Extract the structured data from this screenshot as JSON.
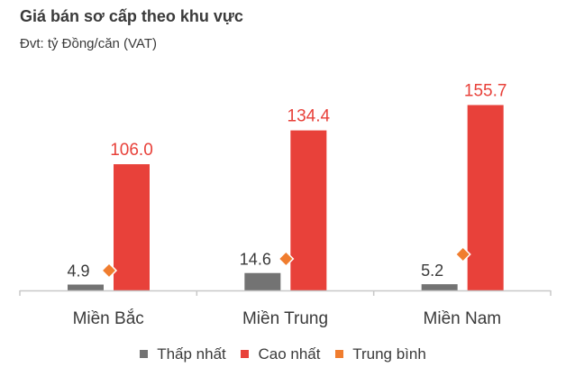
{
  "title": "Giá bán sơ cấp theo khu vực",
  "subtitle": "Đvt: tỷ Đồng/căn (VAT)",
  "colors": {
    "low": "#737373",
    "high": "#e8413a",
    "avg": "#f07d2f",
    "axis": "#c8c8c8",
    "text": "#3a3a3a"
  },
  "chart_data": {
    "type": "bar",
    "title": "Giá bán sơ cấp theo khu vực",
    "subtitle": "Đvt: tỷ Đồng/căn (VAT)",
    "xlabel": "",
    "ylabel": "",
    "categories": [
      "Miền Bắc",
      "Miền Trung",
      "Miền Nam"
    ],
    "series": [
      {
        "name": "Thấp nhất",
        "kind": "bar",
        "color": "#737373",
        "values": [
          4.9,
          14.6,
          5.2
        ],
        "labels": [
          "4.9",
          "14.6",
          "5.2"
        ]
      },
      {
        "name": "Cao nhất",
        "kind": "bar",
        "color": "#e8413a",
        "values": [
          106.0,
          134.4,
          155.7
        ],
        "labels": [
          "106.0",
          "134.4",
          "155.7"
        ]
      },
      {
        "name": "Trung bình",
        "kind": "marker-diamond",
        "color": "#f07d2f",
        "values": [
          16.7,
          26.5,
          30.3
        ],
        "labels": [
          "",
          "",
          ""
        ]
      }
    ],
    "ylim": [
      0,
      160
    ],
    "grid": false,
    "legend_position": "bottom"
  },
  "legend": [
    {
      "label": "Thấp nhất",
      "color": "#737373"
    },
    {
      "label": "Cao nhất",
      "color": "#e8413a"
    },
    {
      "label": "Trung bình",
      "color": "#f07d2f"
    }
  ]
}
